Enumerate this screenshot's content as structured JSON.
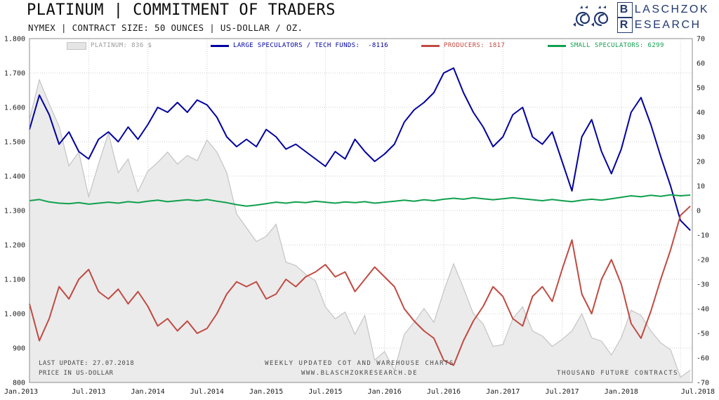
{
  "header": {
    "title": "PLATINUM | COMMITMENT OF TRADERS",
    "subtitle": "NYMEX | CONTRACT SIZE: 50 OUNCES | US-DOLLAR / OZ."
  },
  "logo": {
    "initial1": "B",
    "rest1": "LASCHZOK",
    "initial2": "R",
    "rest2": "ESEARCH",
    "color": "#223a70"
  },
  "legend": [
    {
      "label": "PLATINUM: 836 $",
      "type": "area",
      "color": "#e5e5e5",
      "label_color": "#9a9a9a"
    },
    {
      "label": "LARGE SPECULATORS / TECH FUNDS:  -8116",
      "type": "line",
      "color": "#0000a0",
      "label_color": "#0000a0"
    },
    {
      "label": "PRODUCERS: 1817",
      "type": "line",
      "color": "#c04a42",
      "label_color": "#c04a42"
    },
    {
      "label": "SMALL SPECULATORS: 6299",
      "type": "line",
      "color": "#0fa04e",
      "label_color": "#0fa04e"
    }
  ],
  "footnotes": {
    "last_update": "LAST UPDATE: 27.07.2018",
    "price_note": "PRICE IN US-DOLLAR",
    "center_line1": "WEEKLY UPDATED COT AND WAREHOUSE CHARTS",
    "center_line2": "WWW.BLASCHZOKRESEARCH.DE",
    "right_note": "THOUSAND FUTURE CONTRACTS"
  },
  "chart_data": {
    "type": "line",
    "title": "PLATINUM | COMMITMENT OF TRADERS",
    "subtitle": "NYMEX | CONTRACT SIZE: 50 OUNCES | US-DOLLAR / OZ.",
    "grid": true,
    "legend_position": "top",
    "x_mode": "uniform",
    "x_start": 2013.0,
    "x_end": 2018.583,
    "x_range": [
      2013.0,
      2018.6
    ],
    "x_tick_values": [
      2013.0,
      2013.5,
      2014.0,
      2014.5,
      2015.0,
      2015.5,
      2016.0,
      2016.5,
      2017.0,
      2017.5,
      2018.0,
      2018.5
    ],
    "x_tick_labels": [
      "Jan.2013",
      "Jul.2013",
      "Jan.2014",
      "Jul.2014",
      "Jan.2015",
      "Jul.2015",
      "Jan.2016",
      "Jul.2016",
      "Jan.2017",
      "Jul.2017",
      "Jan.2018",
      "Jul.2018"
    ],
    "y_left": {
      "label": "PRICE IN US-DOLLAR",
      "range": [
        800,
        1800
      ],
      "tick_values": [
        1800,
        1700,
        1600,
        1500,
        1400,
        1300,
        1200,
        1100,
        1000,
        900,
        800
      ],
      "tick_labels": [
        "1.800",
        "1.700",
        "1.600",
        "1.500",
        "1.400",
        "1.300",
        "1.200",
        "1.100",
        "1.000",
        "900",
        "800"
      ]
    },
    "y_right": {
      "label": "THOUSAND FUTURE CONTRACTS",
      "range": [
        -70,
        70
      ],
      "tick_values": [
        70,
        60,
        50,
        40,
        30,
        20,
        10,
        0,
        -10,
        -20,
        -30,
        -40,
        -50,
        -60,
        -70
      ],
      "tick_labels": [
        "70",
        "60",
        "50",
        "40",
        "30",
        "20",
        "10",
        "0",
        "-10",
        "-20",
        "-30",
        "-40",
        "-50",
        "-60",
        "-70"
      ]
    },
    "series": [
      {
        "name": "PLATINUM",
        "axis": "left",
        "style": "area",
        "color": "#ebebeb",
        "edge_color": "#c4c4c4",
        "last_value_display": "836 $",
        "values": [
          1565,
          1680,
          1610,
          1545,
          1430,
          1470,
          1340,
          1435,
          1525,
          1410,
          1450,
          1355,
          1415,
          1440,
          1470,
          1435,
          1460,
          1445,
          1505,
          1470,
          1410,
          1290,
          1250,
          1210,
          1225,
          1260,
          1150,
          1140,
          1115,
          1095,
          1020,
          985,
          1005,
          940,
          995,
          865,
          890,
          835,
          940,
          975,
          1015,
          975,
          1065,
          1145,
          1075,
          1000,
          970,
          905,
          910,
          985,
          1020,
          950,
          935,
          905,
          925,
          950,
          1000,
          930,
          920,
          880,
          930,
          1010,
          995,
          950,
          915,
          895,
          815,
          836
        ]
      },
      {
        "name": "LARGE SPECULATORS / TECH FUNDS",
        "axis": "right",
        "style": "line",
        "color": "#0000a0",
        "last_value_display": "-8116",
        "values": [
          33,
          47,
          39,
          27,
          32,
          24,
          21,
          29,
          32,
          28,
          34,
          29,
          35,
          42,
          40,
          44,
          40,
          45,
          43,
          38,
          30,
          26,
          29,
          26,
          33,
          30,
          25,
          27,
          24,
          21,
          18,
          24,
          21,
          29,
          24,
          20,
          23,
          27,
          36,
          41,
          44,
          48,
          56,
          58,
          48,
          40,
          34,
          26,
          30,
          39,
          42,
          30,
          27,
          32,
          20,
          8,
          30,
          37,
          24,
          15,
          25,
          40,
          46,
          35,
          22,
          10,
          -4,
          -8.1
        ]
      },
      {
        "name": "PRODUCERS",
        "axis": "right",
        "style": "line",
        "color": "#c04a42",
        "last_value_display": "1817",
        "values": [
          -38,
          -53,
          -44,
          -31,
          -36,
          -28,
          -24,
          -33,
          -36,
          -32,
          -38,
          -33,
          -39,
          -47,
          -44,
          -49,
          -45,
          -50,
          -48,
          -42,
          -34,
          -29,
          -31,
          -29,
          -36,
          -34,
          -28,
          -31,
          -27,
          -25,
          -22,
          -27,
          -25,
          -33,
          -28,
          -23,
          -27,
          -31,
          -40,
          -45,
          -49,
          -52,
          -61,
          -63,
          -53,
          -45,
          -39,
          -31,
          -35,
          -44,
          -47,
          -35,
          -31,
          -37,
          -24,
          -12,
          -34,
          -42,
          -28,
          -20,
          -30,
          -46,
          -52,
          -41,
          -28,
          -16,
          -2,
          1.8
        ]
      },
      {
        "name": "SMALL SPECULATORS",
        "axis": "right",
        "style": "line",
        "color": "#0fa04e",
        "last_value_display": "6299",
        "values": [
          4,
          4.5,
          3.5,
          3,
          2.8,
          3.2,
          2.6,
          3,
          3.4,
          3,
          3.6,
          3.2,
          3.8,
          4.2,
          3.6,
          4,
          4.4,
          4,
          4.5,
          3.8,
          3.2,
          2.4,
          1.8,
          2.2,
          2.8,
          3.4,
          3,
          3.5,
          3.2,
          3.8,
          3.4,
          3,
          3.5,
          3.2,
          3.6,
          3,
          3.4,
          3.8,
          4.2,
          3.8,
          4.4,
          4,
          4.6,
          5,
          4.6,
          5.2,
          4.8,
          4.4,
          4.8,
          5.2,
          4.8,
          4.4,
          4,
          4.5,
          4,
          3.6,
          4.2,
          4.6,
          4.2,
          4.8,
          5.4,
          6,
          5.6,
          6.2,
          5.8,
          6.4,
          6,
          6.3
        ]
      }
    ]
  }
}
